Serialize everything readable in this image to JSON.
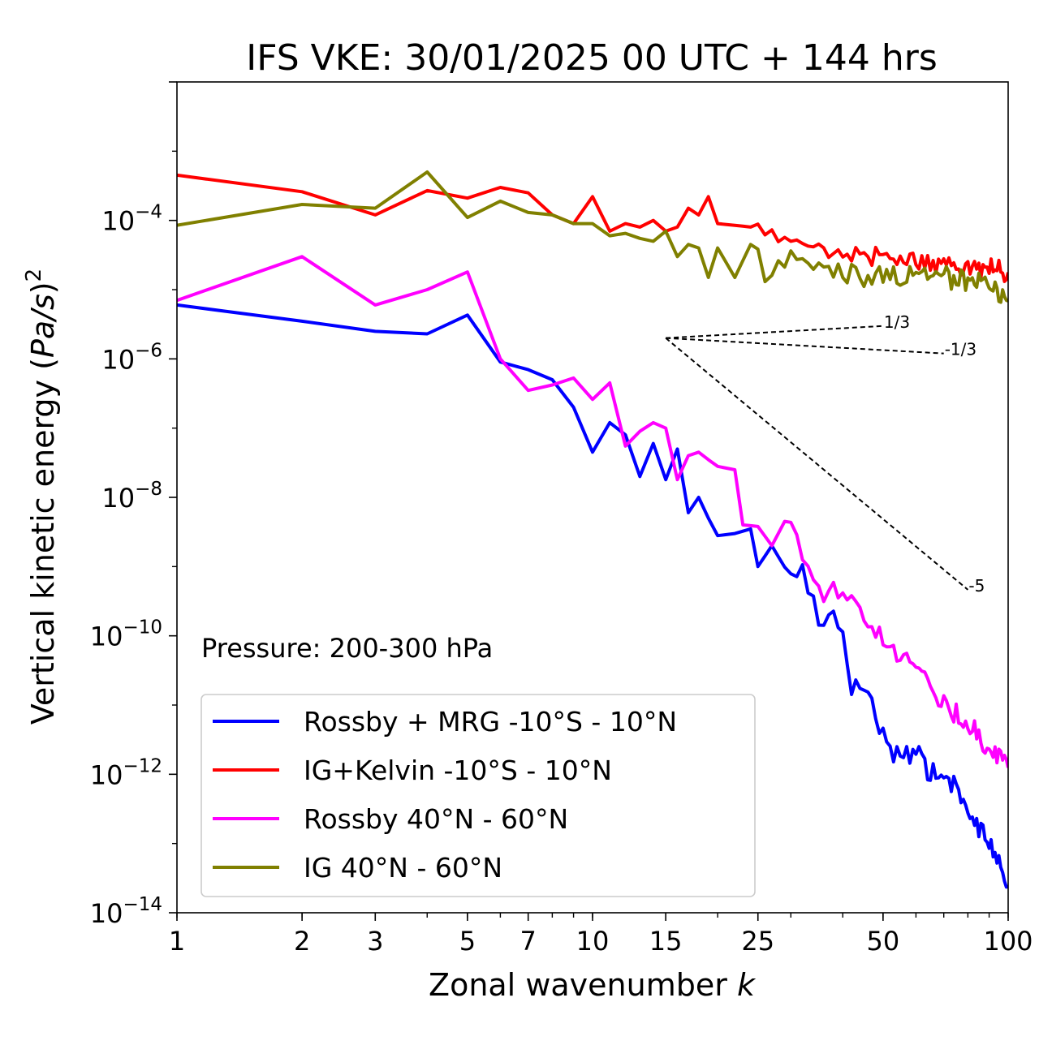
{
  "chart_data": {
    "type": "line",
    "title": "IFS VKE: 30/01/2025 00 UTC + 144 hrs",
    "xlabel_text": "Zonal wavenumber ",
    "xlabel_var": "k",
    "ylabel_text": "Vertical kinetic energy (",
    "ylabel_var": "Pa/s",
    "ylabel_close": ")",
    "ylabel_exp": "2",
    "x_scale": "log",
    "y_scale": "log",
    "xlim": [
      1,
      100
    ],
    "ylim": [
      1e-14,
      0.01
    ],
    "x_ticks": [
      1,
      2,
      3,
      5,
      7,
      10,
      15,
      25,
      50,
      100
    ],
    "x_tick_labels": [
      "1",
      "2",
      "3",
      "5",
      "7",
      "10",
      "15",
      "25",
      "50",
      "100"
    ],
    "y_ticks": [
      1e-14,
      1e-12,
      1e-10,
      1e-08,
      1e-06,
      0.0001
    ],
    "y_tick_exps": [
      "−14",
      "−12",
      "−10",
      "−8",
      "−6",
      "−4"
    ],
    "y_tick_base": "10",
    "grid": false,
    "legend_position": "lower-left",
    "annotation": "Pressure: 200-300 hPa",
    "reference_slopes": [
      {
        "label": "1/3",
        "slope": 0.3333,
        "x0": 15,
        "x1": 50,
        "y0": 2e-06
      },
      {
        "label": "-1/3",
        "slope": -0.3333,
        "x0": 15,
        "x1": 70,
        "y0": 2e-06
      },
      {
        "label": "-5",
        "slope": -5,
        "x0": 15,
        "x1": 80,
        "y0": 2e-06
      }
    ],
    "series": [
      {
        "name": "Rossby + MRG -10°S - 10°N",
        "color": "#0000ff",
        "anchors": [
          [
            1,
            6e-06
          ],
          [
            2,
            3.5e-06
          ],
          [
            3,
            2.5e-06
          ],
          [
            4,
            2.3e-06
          ],
          [
            5,
            4.3e-06
          ],
          [
            6,
            9e-07
          ],
          [
            7,
            7e-07
          ],
          [
            8,
            5e-07
          ],
          [
            9,
            2e-07
          ],
          [
            10,
            4.5e-08
          ],
          [
            11,
            1.2e-07
          ],
          [
            12,
            8e-08
          ],
          [
            13,
            2e-08
          ],
          [
            14,
            6e-08
          ],
          [
            15,
            1.8e-08
          ],
          [
            16,
            5e-08
          ],
          [
            17,
            6e-09
          ],
          [
            18,
            1e-08
          ],
          [
            19,
            5e-09
          ],
          [
            20,
            2.8e-09
          ],
          [
            22,
            3e-09
          ],
          [
            24,
            3.5e-09
          ],
          [
            25,
            1e-09
          ],
          [
            27,
            2e-09
          ],
          [
            30,
            7e-10
          ],
          [
            32,
            1e-09
          ],
          [
            35,
            1.5e-10
          ],
          [
            37,
            2e-10
          ],
          [
            40,
            1e-10
          ],
          [
            42,
            1.5e-11
          ],
          [
            45,
            2e-11
          ],
          [
            50,
            4e-12
          ],
          [
            55,
            1.5e-12
          ],
          [
            60,
            2e-12
          ],
          [
            65,
            1e-12
          ],
          [
            70,
            9e-13
          ],
          [
            75,
            6e-13
          ],
          [
            80,
            3e-13
          ],
          [
            85,
            1.5e-13
          ],
          [
            90,
            1e-13
          ],
          [
            95,
            7e-14
          ],
          [
            100,
            2e-14
          ]
        ],
        "noise": 0.35,
        "noise_start": 30
      },
      {
        "name": "IG+Kelvin -10°S - 10°N",
        "color": "#ff0000",
        "anchors": [
          [
            1,
            0.00045
          ],
          [
            2,
            0.00026
          ],
          [
            3,
            0.00012
          ],
          [
            4,
            0.00027
          ],
          [
            5,
            0.00021
          ],
          [
            6,
            0.0003
          ],
          [
            7,
            0.00025
          ],
          [
            8,
            0.00012
          ],
          [
            9,
            9e-05
          ],
          [
            10,
            0.00022
          ],
          [
            11,
            7e-05
          ],
          [
            12,
            9e-05
          ],
          [
            13,
            8e-05
          ],
          [
            14,
            0.0001
          ],
          [
            15,
            7e-05
          ],
          [
            16,
            8e-05
          ],
          [
            17,
            0.00015
          ],
          [
            18,
            0.00012
          ],
          [
            19,
            0.00022
          ],
          [
            20,
            9e-05
          ],
          [
            22,
            8.5e-05
          ],
          [
            24,
            8e-05
          ],
          [
            26,
            6e-05
          ],
          [
            30,
            5e-05
          ],
          [
            35,
            4e-05
          ],
          [
            40,
            3.5e-05
          ],
          [
            50,
            3e-05
          ],
          [
            60,
            2.5e-05
          ],
          [
            70,
            2.4e-05
          ],
          [
            80,
            2.2e-05
          ],
          [
            90,
            2e-05
          ],
          [
            100,
            1.8e-05
          ]
        ],
        "noise": 0.3,
        "noise_start": 25
      },
      {
        "name": "Rossby 40°N - 60°N",
        "color": "#ff00ff",
        "anchors": [
          [
            1,
            7e-06
          ],
          [
            2,
            3e-05
          ],
          [
            3,
            6e-06
          ],
          [
            4,
            1e-05
          ],
          [
            5,
            1.8e-05
          ],
          [
            6,
            1e-06
          ],
          [
            7,
            3.5e-07
          ],
          [
            8,
            4.2e-07
          ],
          [
            9,
            5.3e-07
          ],
          [
            10,
            2.6e-07
          ],
          [
            11,
            4.5e-07
          ],
          [
            12,
            5.5e-08
          ],
          [
            13,
            9e-08
          ],
          [
            14,
            1.2e-07
          ],
          [
            15,
            1e-07
          ],
          [
            16,
            1.8e-08
          ],
          [
            17,
            4e-08
          ],
          [
            18,
            4.5e-08
          ],
          [
            19,
            3.5e-08
          ],
          [
            20,
            2.8e-08
          ],
          [
            22,
            2.5e-08
          ],
          [
            23,
            4e-09
          ],
          [
            25,
            3.8e-09
          ],
          [
            27,
            2e-09
          ],
          [
            29,
            4.5e-09
          ],
          [
            32,
            1.5e-09
          ],
          [
            35,
            5e-10
          ],
          [
            40,
            3.5e-10
          ],
          [
            45,
            2e-10
          ],
          [
            50,
            8e-11
          ],
          [
            60,
            3e-11
          ],
          [
            70,
            1.2e-11
          ],
          [
            80,
            5e-12
          ],
          [
            90,
            2.5e-12
          ],
          [
            100,
            1.5e-12
          ]
        ],
        "noise": 0.35,
        "noise_start": 30
      },
      {
        "name": "IG 40°N - 60°N",
        "color": "#808000",
        "anchors": [
          [
            1,
            8.5e-05
          ],
          [
            2,
            0.00017
          ],
          [
            3,
            0.00015
          ],
          [
            4,
            0.0005
          ],
          [
            5,
            0.00011
          ],
          [
            6,
            0.00019
          ],
          [
            7,
            0.00013
          ],
          [
            8,
            0.00012
          ],
          [
            9,
            9e-05
          ],
          [
            10,
            9e-05
          ],
          [
            11,
            6e-05
          ],
          [
            12,
            6.5e-05
          ],
          [
            13,
            5.5e-05
          ],
          [
            14,
            5e-05
          ],
          [
            15,
            7e-05
          ],
          [
            16,
            3e-05
          ],
          [
            17,
            4.5e-05
          ],
          [
            18,
            4e-05
          ],
          [
            19,
            1.5e-05
          ],
          [
            20,
            4e-05
          ],
          [
            22,
            1.5e-05
          ],
          [
            24,
            4.5e-05
          ],
          [
            26,
            1.5e-05
          ],
          [
            28,
            2.5e-05
          ],
          [
            30,
            3.3e-05
          ],
          [
            35,
            2e-05
          ],
          [
            40,
            1.8e-05
          ],
          [
            50,
            1.5e-05
          ],
          [
            60,
            1.6e-05
          ],
          [
            70,
            1.5e-05
          ],
          [
            80,
            1.4e-05
          ],
          [
            90,
            1.1e-05
          ],
          [
            100,
            8e-06
          ]
        ],
        "noise": 0.35,
        "noise_start": 25
      }
    ]
  }
}
